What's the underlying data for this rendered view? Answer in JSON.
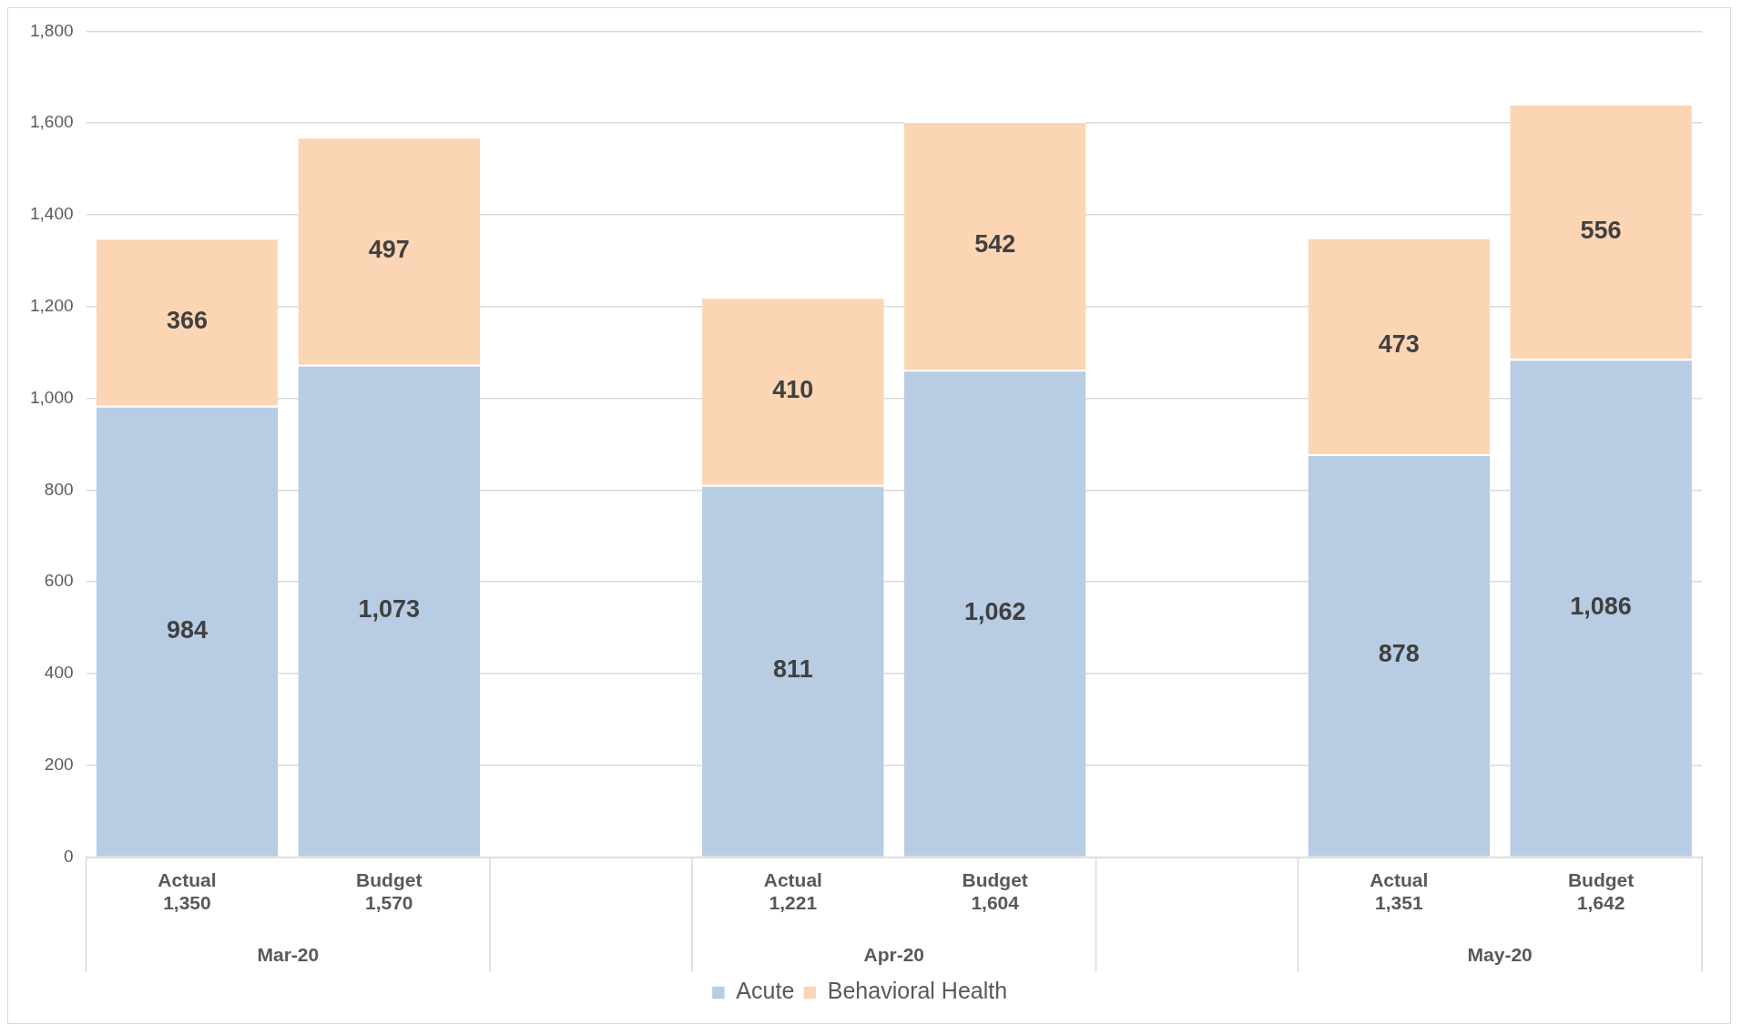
{
  "chart_data": {
    "type": "bar",
    "stacked": true,
    "categories": [
      "Actual",
      "Budget",
      null,
      "Actual",
      "Budget",
      null,
      "Actual",
      "Budget"
    ],
    "totals": [
      "1,350",
      "1,570",
      null,
      "1,221",
      "1,604",
      null,
      "1,351",
      "1,642"
    ],
    "annotations": [
      "Mar-20",
      "Apr-20",
      "May-20"
    ],
    "series": [
      {
        "name": "Acute",
        "color": "#b8cce4",
        "values": [
          984,
          1073,
          null,
          811,
          1062,
          null,
          878,
          1086
        ],
        "value_labels": [
          "984",
          "1,073",
          null,
          "811",
          "1,062",
          null,
          "878",
          "1,086"
        ]
      },
      {
        "name": "Behavioral Health",
        "color": "#fcd5b4",
        "values": [
          366,
          497,
          null,
          410,
          542,
          null,
          473,
          556
        ],
        "value_labels": [
          "366",
          "497",
          null,
          "410",
          "542",
          null,
          "473",
          "556"
        ]
      }
    ],
    "ylim": [
      0,
      1800
    ],
    "yticks": [
      0,
      200,
      400,
      600,
      800,
      {
        "value": 1000,
        "label": "1,000"
      },
      {
        "value": 1200,
        "label": "1,200"
      },
      {
        "value": 1400,
        "label": "1,400"
      },
      {
        "value": 1600,
        "label": "1,600"
      },
      {
        "value": 1800,
        "label": "1,800"
      }
    ],
    "grid": "y",
    "legend": "bottom"
  }
}
